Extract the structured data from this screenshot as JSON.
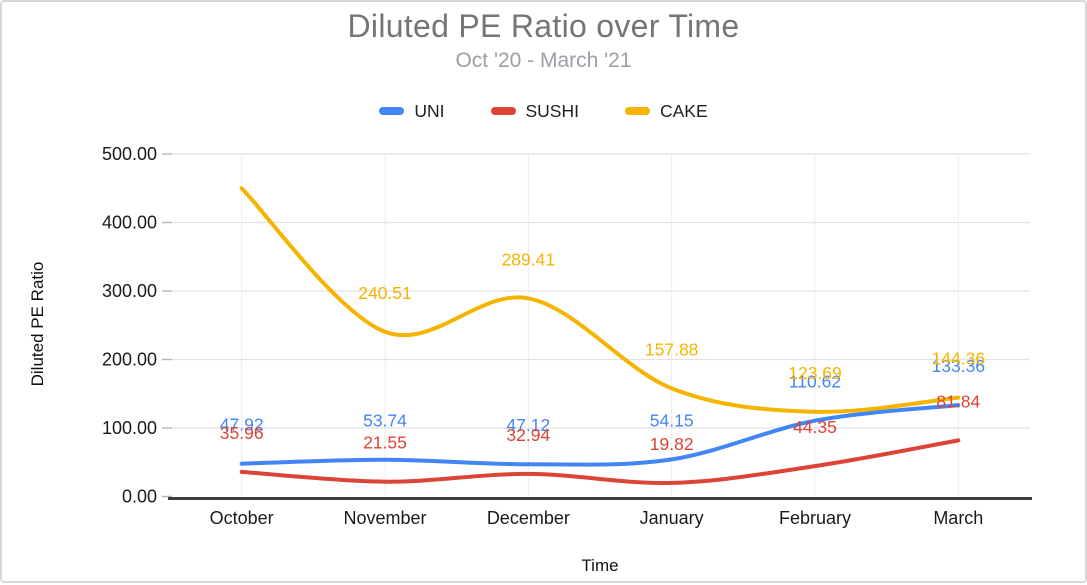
{
  "chart": {
    "title": "Diluted PE Ratio over Time",
    "subtitle": "Oct '20 - March '21",
    "x_axis_title": "Time",
    "y_axis_title": "Diluted PE Ratio",
    "axis_color": "#1a1a1a",
    "gridline_color": "#e2e2e2",
    "baseline_color": "#3c3c3c"
  },
  "chart_data": {
    "type": "line",
    "smooth": true,
    "title": "Diluted PE Ratio over Time",
    "subtitle": "Oct '20 - March '21",
    "xlabel": "Time",
    "ylabel": "Diluted PE Ratio",
    "legend_position": "top",
    "grid": true,
    "ylim": [
      0,
      500
    ],
    "y_ticks": [
      "0.00",
      "100.00",
      "200.00",
      "300.00",
      "400.00",
      "500.00"
    ],
    "categories": [
      "October",
      "November",
      "December",
      "January",
      "February",
      "March"
    ],
    "series": [
      {
        "name": "UNI",
        "color": "#4285f4",
        "values": [
          47.92,
          53.74,
          47.12,
          54.15,
          110.62,
          133.36
        ],
        "labels": [
          "47.92",
          "53.74",
          "47.12",
          "54.15",
          "110.62",
          "133.36"
        ]
      },
      {
        "name": "SUSHI",
        "color": "#db4437",
        "values": [
          35.96,
          21.55,
          32.94,
          19.82,
          44.35,
          81.84
        ],
        "labels": [
          "35.96",
          "21.55",
          "32.94",
          "19.82",
          "44.35",
          "81.84"
        ]
      },
      {
        "name": "CAKE",
        "color": "#f4b400",
        "values": [
          450,
          240.51,
          289.41,
          157.88,
          123.69,
          144.36
        ],
        "labels": [
          null,
          "240.51",
          "289.41",
          "157.88",
          "123.69",
          "144.36"
        ]
      }
    ]
  }
}
